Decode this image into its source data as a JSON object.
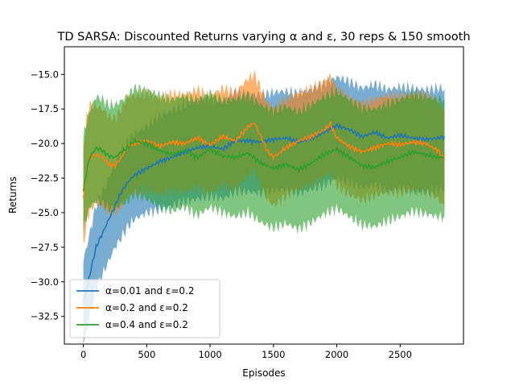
{
  "chart_data": {
    "type": "line",
    "title": "TD SARSA: Discounted Returns varying α and ε, 30 reps & 150 smooth",
    "xlabel": "Episodes",
    "ylabel": "Returns",
    "xlim": [
      -150,
      3000
    ],
    "ylim": [
      -34.5,
      -13.0
    ],
    "xticks": [
      0,
      500,
      1000,
      1500,
      2000,
      2500
    ],
    "yticks": [
      -32.5,
      -30.0,
      -27.5,
      -25.0,
      -22.5,
      -20.0,
      -17.5,
      -15.0
    ],
    "xtick_labels": [
      "0",
      "500",
      "1000",
      "1500",
      "2000",
      "2500"
    ],
    "ytick_labels": [
      "−32.5",
      "−30.0",
      "−27.5",
      "−25.0",
      "−22.5",
      "−20.0",
      "−17.5",
      "−15.0"
    ],
    "legend_position": "lower-left",
    "grid": false,
    "series": [
      {
        "name": "α=0.01 and ε=0.2",
        "color": "#1f77b4",
        "x": [
          0,
          50,
          100,
          150,
          200,
          250,
          300,
          350,
          400,
          500,
          600,
          700,
          800,
          900,
          1000,
          1100,
          1200,
          1300,
          1400,
          1500,
          1600,
          1700,
          1800,
          1900,
          2000,
          2100,
          2200,
          2300,
          2400,
          2500,
          2600,
          2700,
          2800,
          2850
        ],
        "y": [
          -31.5,
          -29.5,
          -27.5,
          -26.5,
          -25.5,
          -24.5,
          -23.5,
          -22.8,
          -22.3,
          -21.8,
          -21.3,
          -21.0,
          -20.6,
          -20.3,
          -20.2,
          -20.4,
          -19.8,
          -19.8,
          -19.9,
          -19.7,
          -19.6,
          -19.9,
          -19.6,
          -19.2,
          -18.7,
          -19.0,
          -19.5,
          -19.2,
          -19.6,
          -19.4,
          -19.6,
          -19.7,
          -19.6,
          -19.5
        ],
        "band_lower": [
          -34.5,
          -32.5,
          -30.5,
          -29.5,
          -28.5,
          -27.5,
          -26.8,
          -26.0,
          -25.5,
          -25.0,
          -24.8,
          -24.5,
          -24.2,
          -24.0,
          -23.8,
          -24.0,
          -23.5,
          -23.5,
          -23.6,
          -23.4,
          -23.3,
          -23.6,
          -23.3,
          -23.0,
          -22.5,
          -22.8,
          -23.2,
          -23.0,
          -23.4,
          -23.2,
          -23.4,
          -23.5,
          -23.4,
          -23.3
        ],
        "band_upper": [
          -28.5,
          -26.5,
          -24.5,
          -23.5,
          -22.5,
          -21.5,
          -20.5,
          -19.8,
          -19.3,
          -18.8,
          -18.0,
          -17.6,
          -17.2,
          -16.8,
          -16.8,
          -16.9,
          -16.3,
          -16.4,
          -16.5,
          -16.3,
          -16.2,
          -16.4,
          -16.1,
          -15.7,
          -15.2,
          -15.5,
          -16.0,
          -15.7,
          -16.1,
          -15.9,
          -16.0,
          -16.1,
          -16.0,
          -16.0
        ]
      },
      {
        "name": "α=0.2 and ε=0.2",
        "color": "#ff7f0e",
        "x": [
          0,
          25,
          50,
          100,
          150,
          200,
          250,
          300,
          350,
          400,
          500,
          600,
          700,
          800,
          900,
          1000,
          1100,
          1200,
          1300,
          1350,
          1400,
          1450,
          1500,
          1600,
          1700,
          1800,
          1900,
          1950,
          2000,
          2100,
          2200,
          2300,
          2400,
          2500,
          2600,
          2700,
          2800,
          2850
        ],
        "y": [
          -24.0,
          -22.0,
          -21.0,
          -20.8,
          -21.0,
          -21.5,
          -21.6,
          -21.0,
          -20.2,
          -20.0,
          -19.8,
          -20.2,
          -19.9,
          -20.0,
          -19.6,
          -20.1,
          -19.5,
          -19.8,
          -18.8,
          -18.5,
          -19.5,
          -20.5,
          -21.0,
          -20.3,
          -19.8,
          -19.5,
          -19.0,
          -18.6,
          -19.6,
          -20.2,
          -20.6,
          -20.3,
          -20.0,
          -20.1,
          -19.9,
          -20.0,
          -20.5,
          -21.2
        ],
        "band_lower": [
          -27.5,
          -25.8,
          -24.8,
          -24.3,
          -24.5,
          -25.0,
          -25.0,
          -24.5,
          -23.8,
          -23.5,
          -23.3,
          -23.7,
          -23.4,
          -23.5,
          -23.1,
          -23.6,
          -23.0,
          -23.3,
          -22.3,
          -22.0,
          -23.0,
          -24.0,
          -24.5,
          -23.8,
          -23.3,
          -23.0,
          -22.5,
          -22.1,
          -23.1,
          -23.7,
          -24.1,
          -23.8,
          -23.5,
          -23.6,
          -23.4,
          -23.5,
          -24.0,
          -24.7
        ],
        "band_upper": [
          -20.5,
          -18.2,
          -17.2,
          -17.3,
          -17.5,
          -18.0,
          -18.2,
          -17.5,
          -16.6,
          -16.5,
          -16.3,
          -16.7,
          -16.4,
          -16.5,
          -16.1,
          -16.6,
          -16.0,
          -16.3,
          -15.3,
          -15.0,
          -16.0,
          -17.0,
          -17.5,
          -16.8,
          -16.3,
          -16.0,
          -15.5,
          -15.1,
          -16.1,
          -16.7,
          -17.1,
          -16.8,
          -16.5,
          -16.6,
          -16.4,
          -16.5,
          -17.0,
          -17.7
        ]
      },
      {
        "name": "α=0.4 and ε=0.2",
        "color": "#2ca02c",
        "x": [
          0,
          25,
          50,
          100,
          150,
          200,
          250,
          300,
          350,
          400,
          500,
          600,
          700,
          800,
          900,
          1000,
          1100,
          1200,
          1300,
          1400,
          1500,
          1600,
          1700,
          1800,
          1900,
          2000,
          2100,
          2200,
          2300,
          2400,
          2500,
          2600,
          2700,
          2800,
          2850
        ],
        "y": [
          -23.5,
          -22.0,
          -21.0,
          -20.3,
          -20.5,
          -20.9,
          -21.0,
          -20.6,
          -20.3,
          -19.8,
          -20.0,
          -20.5,
          -20.8,
          -20.5,
          -21.0,
          -20.4,
          -20.9,
          -21.0,
          -20.7,
          -21.4,
          -21.8,
          -21.5,
          -21.9,
          -21.4,
          -20.8,
          -20.4,
          -21.0,
          -21.6,
          -21.7,
          -21.3,
          -21.0,
          -20.6,
          -20.8,
          -21.0,
          -21.0
        ],
        "band_lower": [
          -26.5,
          -25.3,
          -24.6,
          -24.2,
          -24.3,
          -24.7,
          -24.8,
          -24.4,
          -24.2,
          -23.7,
          -24.0,
          -24.6,
          -24.9,
          -24.6,
          -25.2,
          -24.6,
          -25.0,
          -25.3,
          -25.0,
          -25.7,
          -26.1,
          -25.8,
          -26.2,
          -25.7,
          -25.1,
          -24.7,
          -25.3,
          -25.9,
          -26.0,
          -25.6,
          -25.3,
          -24.9,
          -25.1,
          -25.3,
          -25.3
        ],
        "band_upper": [
          -19.5,
          -18.5,
          -17.6,
          -16.6,
          -16.8,
          -17.2,
          -17.2,
          -16.9,
          -16.5,
          -16.0,
          -16.1,
          -16.5,
          -16.8,
          -16.5,
          -16.9,
          -16.3,
          -16.9,
          -16.8,
          -16.5,
          -17.2,
          -17.6,
          -17.3,
          -17.7,
          -17.2,
          -16.6,
          -16.2,
          -16.8,
          -17.4,
          -17.5,
          -17.1,
          -16.8,
          -16.4,
          -16.6,
          -16.8,
          -16.8
        ]
      }
    ]
  }
}
